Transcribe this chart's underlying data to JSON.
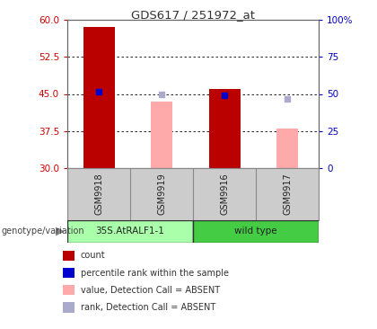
{
  "title": "GDS617 / 251972_at",
  "samples": [
    "GSM9918",
    "GSM9919",
    "GSM9916",
    "GSM9917"
  ],
  "group_labels": [
    "35S.AtRALF1-1",
    "wild type"
  ],
  "ylim_left": [
    30,
    60
  ],
  "ylim_right": [
    0,
    100
  ],
  "yticks_left": [
    30,
    37.5,
    45,
    52.5,
    60
  ],
  "yticks_right": [
    0,
    25,
    50,
    75,
    100
  ],
  "ytick_labels_right": [
    "0",
    "25",
    "50",
    "75",
    "100%"
  ],
  "left_color": "#CC0000",
  "right_color": "#0000BB",
  "count_bars": [
    {
      "sample_idx": 0,
      "value": 58.5,
      "color": "#BB0000"
    },
    {
      "sample_idx": 2,
      "value": 46.0,
      "color": "#BB0000"
    }
  ],
  "percentile_dots": [
    {
      "sample_idx": 0,
      "value": 45.5,
      "color": "#0000CC"
    },
    {
      "sample_idx": 2,
      "value": 44.8,
      "color": "#0000CC"
    }
  ],
  "absent_value_bars": [
    {
      "sample_idx": 1,
      "value": 43.5,
      "color": "#FFAAAA"
    },
    {
      "sample_idx": 3,
      "value": 38.0,
      "color": "#FFAAAA"
    }
  ],
  "absent_rank_dots": [
    {
      "sample_idx": 1,
      "value": 45.0,
      "color": "#AAAACC"
    },
    {
      "sample_idx": 3,
      "value": 44.0,
      "color": "#AAAACC"
    }
  ],
  "legend_colors": [
    "#BB0000",
    "#0000CC",
    "#FFAAAA",
    "#AAAACC"
  ],
  "legend_texts": [
    "count",
    "percentile rank within the sample",
    "value, Detection Call = ABSENT",
    "rank, Detection Call = ABSENT"
  ],
  "bg_color": "#FFFFFF",
  "sample_bg": "#CCCCCC",
  "group1_color": "#AAFFAA",
  "group2_color": "#44CC44",
  "baseline": 30,
  "bar_width": 0.5,
  "genotype_label": "genotype/variation"
}
